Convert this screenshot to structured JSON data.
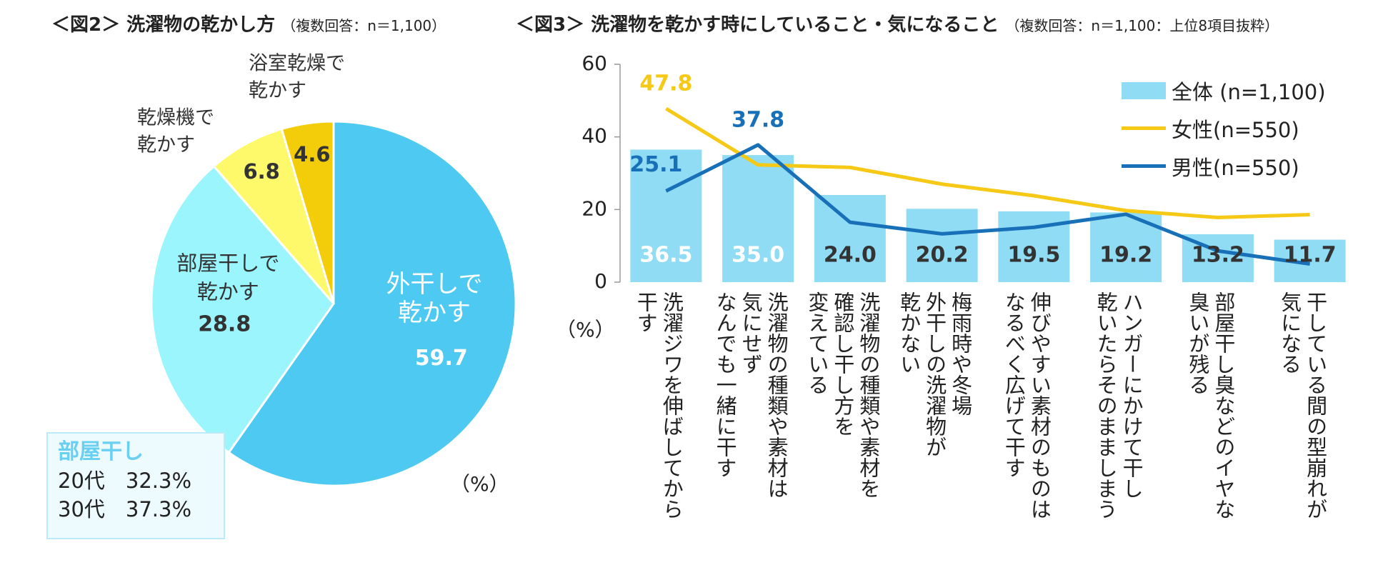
{
  "fig2": {
    "title": "＜図2＞ 洗濯物の乾かし方",
    "note": "（複数回答：n＝1,100）",
    "unit": "（%）",
    "chart_data": {
      "type": "pie",
      "slices": [
        {
          "label_lines": [
            "外干しで",
            "乾かす"
          ],
          "value": 59.7,
          "color": "#4ec9f2"
        },
        {
          "label_lines": [
            "部屋干しで",
            "乾かす"
          ],
          "value": 28.8,
          "color": "#9af5fd"
        },
        {
          "label_lines": [
            "乾燥機で",
            "乾かす"
          ],
          "value": 6.8,
          "color": "#fdf96b"
        },
        {
          "label_lines": [
            "浴室乾燥で",
            "乾かす"
          ],
          "value": 4.6,
          "color": "#f3cd0a"
        }
      ]
    },
    "callout": {
      "title": "部屋干し",
      "rows": [
        "20代　32.3%",
        "30代　37.3%"
      ]
    }
  },
  "fig3": {
    "title": "＜図3＞ 洗濯物を乾かす時にしていること・気になること",
    "note": "（複数回答：n＝1,100：上位8項目抜粋）",
    "unit": "（%）",
    "chart_data": {
      "type": "bar",
      "ylim": [
        0,
        60
      ],
      "yticks": [
        0,
        20,
        40,
        60
      ],
      "categories": [
        [
          "洗濯ジワを伸ばしてから",
          "干す"
        ],
        [
          "洗濯物の種類や素材は",
          "気にせず",
          "なんでも一緒に干す"
        ],
        [
          "洗濯物の種類や素材を",
          "確認し干し方を",
          "変えている"
        ],
        [
          "梅雨時や冬場",
          "外干しの洗濯物が",
          "乾かない"
        ],
        [
          "伸びやすい素材のものは",
          "なるべく広げて干す"
        ],
        [
          "ハンガーにかけて干し",
          "乾いたらそのまましまう"
        ],
        [
          "部屋干し臭などのイヤな",
          "臭いが残る"
        ],
        [
          "干している間の型崩れが",
          "気になる"
        ]
      ],
      "series": [
        {
          "name": "全体 (n=1,100)",
          "kind": "bar",
          "color": "#8fdcf4",
          "values": [
            36.5,
            35.0,
            24.0,
            20.2,
            19.5,
            19.2,
            13.2,
            11.7
          ]
        },
        {
          "name": "女性(n=550)",
          "kind": "line",
          "color": "#f5c916",
          "values": [
            47.8,
            32.3,
            31.6,
            27.0,
            23.8,
            19.7,
            17.8,
            18.6
          ]
        },
        {
          "name": "男性(n=550)",
          "kind": "line",
          "color": "#1770b8",
          "values": [
            25.1,
            37.8,
            16.5,
            13.3,
            15.1,
            18.7,
            8.6,
            5.0
          ]
        }
      ],
      "callouts": [
        {
          "series": 1,
          "index": 0,
          "text": "47.8"
        },
        {
          "series": 2,
          "index": 1,
          "text": "37.8"
        },
        {
          "series": 2,
          "index": 0,
          "text": "25.1"
        }
      ]
    }
  }
}
